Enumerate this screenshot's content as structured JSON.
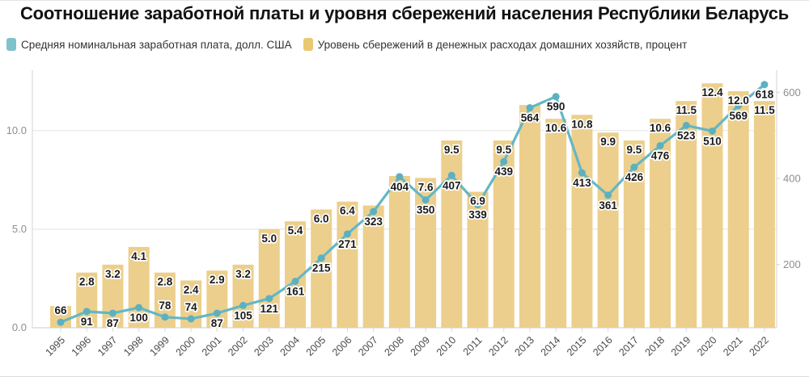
{
  "title": "Соотношение заработной платы и уровня сбережений населения Республики Беларусь",
  "legend": {
    "items": [
      {
        "label": "Средняя номинальная заработная плата, долл. США",
        "color": "#7FC3CC"
      },
      {
        "label": "Уровень сбережений в денежных расходах домашних хозяйств, процент",
        "color": "#EAC873"
      }
    ]
  },
  "chart_data": {
    "type": "combo: bar (left axis) + line with point markers (right axis)",
    "title": "Соотношение заработной платы и уровня сбережений населения Республики Беларусь",
    "categories": [
      "1995",
      "1996",
      "1997",
      "1998",
      "1999",
      "2000",
      "2001",
      "2002",
      "2003",
      "2004",
      "2005",
      "2006",
      "2007",
      "2008",
      "2009",
      "2010",
      "2011",
      "2012",
      "2013",
      "2014",
      "2015",
      "2016",
      "2017",
      "2018",
      "2019",
      "2020",
      "2021",
      "2022"
    ],
    "series": [
      {
        "name": "Средняя номинальная заработная плата, долл. США",
        "type": "line",
        "axis": "right",
        "color": "#64B7C5",
        "marker_color": "#5BB1C1",
        "values": [
          66,
          91,
          87,
          100,
          78,
          74,
          87,
          105,
          121,
          161,
          215,
          271,
          323,
          404,
          350,
          407,
          339,
          439,
          564,
          590,
          413,
          361,
          426,
          476,
          523,
          510,
          569,
          618
        ],
        "point_labels": [
          "66",
          "91",
          "87",
          "100",
          "78",
          "74",
          "87",
          "105",
          "121",
          "161",
          "215",
          "271",
          "323",
          "404",
          "350",
          "407",
          "339",
          "439",
          "564",
          "590",
          "413",
          "361",
          "426",
          "476",
          "523",
          "510",
          "569",
          "618"
        ],
        "label_side": [
          "above",
          "below",
          "below",
          "below",
          "above",
          "above",
          "below",
          "below",
          "below",
          "below",
          "below",
          "below",
          "below",
          "below",
          "below",
          "below",
          "below",
          "below",
          "below",
          "below",
          "below",
          "below",
          "below",
          "below",
          "below",
          "below",
          "below",
          "below"
        ]
      },
      {
        "name": "Уровень сбережений в денежных расходах домашних хозяйств, процент",
        "type": "bar",
        "axis": "left",
        "color": "#ECCF8C",
        "values": [
          1.1,
          2.8,
          3.2,
          4.1,
          2.8,
          2.4,
          2.9,
          3.2,
          5.0,
          5.4,
          6.0,
          6.4,
          6.2,
          7.7,
          7.6,
          9.5,
          6.9,
          9.5,
          11.3,
          10.6,
          10.8,
          9.9,
          9.5,
          10.6,
          11.5,
          12.4,
          12.0,
          11.5
        ],
        "bar_labels": [
          null,
          "2.8",
          "3.2",
          "4.1",
          "2.8",
          "2.4",
          "2.9",
          "3.2",
          "5.0",
          "5.4",
          "6.0",
          "6.4",
          null,
          null,
          "7.6",
          "9.5",
          "6.9",
          "9.5",
          null,
          "10.6",
          "10.8",
          "9.9",
          "9.5",
          "10.6",
          "11.5",
          "12.4",
          "12.0",
          "11.5"
        ]
      }
    ],
    "left_axis": {
      "ticks": [
        {
          "label": "0.0",
          "value": 0
        },
        {
          "label": "5.0",
          "value": 5
        },
        {
          "label": "10.0",
          "value": 10
        }
      ],
      "range": [
        0,
        13.1
      ],
      "gridlines": [
        5,
        10
      ]
    },
    "right_axis": {
      "ticks": [
        {
          "label": "200",
          "value": 200
        },
        {
          "label": "400",
          "value": 400
        },
        {
          "label": "600",
          "value": 600
        }
      ],
      "range": [
        0,
        650
      ]
    },
    "grid": "horizontal gridlines at left-axis values 5.0 and 10.0; baseline at 0",
    "legend_position": "top-left",
    "x_tick_rotation": -45
  }
}
